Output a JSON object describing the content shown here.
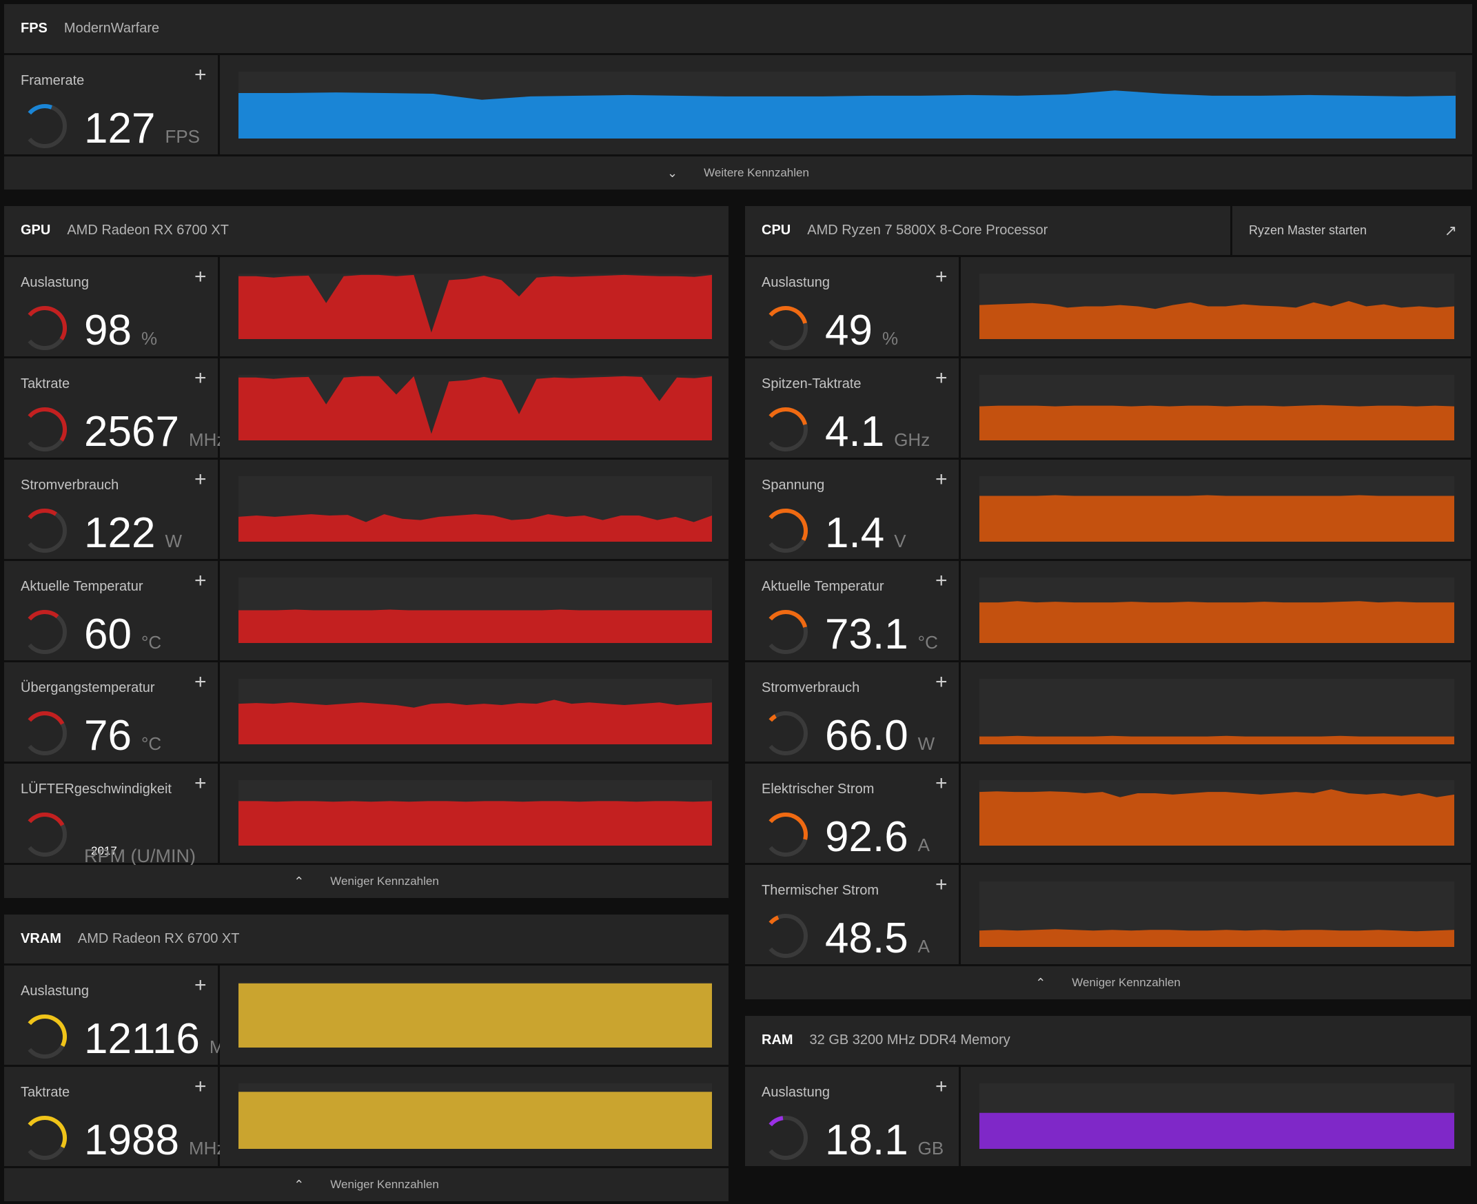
{
  "fps": {
    "tag": "FPS",
    "device": "ModernWarfare",
    "metric": {
      "label": "Framerate",
      "value": "127",
      "unit": "FPS",
      "level": 0.25,
      "color": "#1a85d6",
      "trace": [
        0.68,
        0.68,
        0.69,
        0.68,
        0.67,
        0.58,
        0.63,
        0.64,
        0.65,
        0.64,
        0.63,
        0.63,
        0.63,
        0.64,
        0.64,
        0.65,
        0.64,
        0.66,
        0.72,
        0.67,
        0.64,
        0.64,
        0.65,
        0.64,
        0.63,
        0.64
      ]
    },
    "footer": "Weitere Kennzahlen"
  },
  "gpu": {
    "tag": "GPU",
    "device": "AMD Radeon RX 6700 XT",
    "color": "#c32020",
    "metrics": [
      {
        "label": "Auslastung",
        "value": "98",
        "unit": "%",
        "level": 0.62,
        "trace": [
          0.96,
          0.96,
          0.94,
          0.96,
          0.97,
          0.55,
          0.96,
          0.98,
          0.98,
          0.96,
          0.98,
          0.1,
          0.9,
          0.92,
          0.97,
          0.9,
          0.65,
          0.94,
          0.96,
          0.95,
          0.96,
          0.97,
          0.98,
          0.97,
          0.96,
          0.96,
          0.95,
          0.98
        ]
      },
      {
        "label": "Taktrate",
        "value": "2567",
        "unit": "MHz",
        "level": 0.62,
        "trace": [
          0.96,
          0.96,
          0.94,
          0.96,
          0.97,
          0.55,
          0.96,
          0.98,
          0.98,
          0.7,
          0.98,
          0.1,
          0.9,
          0.92,
          0.97,
          0.92,
          0.4,
          0.94,
          0.96,
          0.95,
          0.96,
          0.97,
          0.98,
          0.97,
          0.6,
          0.96,
          0.95,
          0.98
        ]
      },
      {
        "label": "Stromverbrauch",
        "value": "122",
        "unit": "W",
        "level": 0.3,
        "trace": [
          0.38,
          0.4,
          0.38,
          0.4,
          0.42,
          0.4,
          0.41,
          0.3,
          0.42,
          0.35,
          0.33,
          0.38,
          0.4,
          0.42,
          0.4,
          0.33,
          0.35,
          0.42,
          0.38,
          0.4,
          0.33,
          0.4,
          0.4,
          0.33,
          0.38,
          0.3,
          0.4
        ]
      },
      {
        "label": "Aktuelle Temperatur",
        "value": "60",
        "unit": "°C",
        "level": 0.32,
        "trace": [
          0.5,
          0.5,
          0.5,
          0.51,
          0.5,
          0.5,
          0.5,
          0.5,
          0.51,
          0.5,
          0.5,
          0.5,
          0.5,
          0.5,
          0.5,
          0.5,
          0.5,
          0.51,
          0.5,
          0.5,
          0.5,
          0.5,
          0.5,
          0.5,
          0.5,
          0.5
        ]
      },
      {
        "label": "Übergangstemperatur",
        "value": "76",
        "unit": "°C",
        "level": 0.4,
        "trace": [
          0.62,
          0.63,
          0.62,
          0.64,
          0.62,
          0.6,
          0.62,
          0.64,
          0.62,
          0.6,
          0.56,
          0.62,
          0.63,
          0.6,
          0.62,
          0.6,
          0.63,
          0.62,
          0.68,
          0.62,
          0.64,
          0.62,
          0.6,
          0.62,
          0.64,
          0.6,
          0.62,
          0.64
        ]
      },
      {
        "label": "LÜFTERgeschwindigkeit",
        "value": "2017",
        "unit": "RPM (U/MIN)",
        "level": 0.4,
        "trace": [
          0.68,
          0.68,
          0.67,
          0.68,
          0.68,
          0.67,
          0.68,
          0.67,
          0.68,
          0.67,
          0.68,
          0.68,
          0.67,
          0.68,
          0.68,
          0.67,
          0.68,
          0.68,
          0.67,
          0.68,
          0.68,
          0.67,
          0.68,
          0.68,
          0.67,
          0.68
        ]
      }
    ],
    "footer": "Weniger Kennzahlen"
  },
  "vram": {
    "tag": "VRAM",
    "device": "AMD Radeon RX 6700 XT",
    "color": "#caa42f",
    "gauge_color": "#f0c419",
    "metrics": [
      {
        "label": "Auslastung",
        "value": "12116",
        "unit": "MB",
        "level": 0.6,
        "trace": [
          0.98,
          0.98,
          0.98,
          0.98,
          0.98,
          0.98,
          0.98,
          0.98,
          0.98,
          0.98,
          0.98,
          0.98,
          0.98,
          0.98,
          0.98,
          0.98,
          0.98,
          0.98,
          0.98,
          0.98,
          0.98,
          0.98
        ]
      },
      {
        "label": "Taktrate",
        "value": "1988",
        "unit": "MHz",
        "level": 0.6,
        "trace": [
          0.87,
          0.87,
          0.87,
          0.87,
          0.87,
          0.87,
          0.87,
          0.87,
          0.87,
          0.87,
          0.87,
          0.87,
          0.87,
          0.87,
          0.87,
          0.87,
          0.87,
          0.87,
          0.87,
          0.87,
          0.87,
          0.87
        ]
      }
    ],
    "footer": "Weniger Kennzahlen"
  },
  "cpu": {
    "tag": "CPU",
    "device": "AMD Ryzen 7 5800X 8-Core Processor",
    "ext_label": "Ryzen Master starten",
    "color": "#c4510f",
    "gauge_color": "#f06a12",
    "metrics": [
      {
        "label": "Auslastung",
        "value": "49",
        "unit": "%",
        "level": 0.45,
        "trace": [
          0.52,
          0.53,
          0.54,
          0.55,
          0.53,
          0.48,
          0.5,
          0.5,
          0.52,
          0.5,
          0.46,
          0.52,
          0.56,
          0.5,
          0.5,
          0.53,
          0.51,
          0.5,
          0.48,
          0.56,
          0.5,
          0.58,
          0.5,
          0.53,
          0.48,
          0.5,
          0.48,
          0.5
        ]
      },
      {
        "label": "Spitzen-Taktrate",
        "value": "4.1",
        "unit": "GHz",
        "level": 0.45,
        "trace": [
          0.52,
          0.53,
          0.53,
          0.53,
          0.52,
          0.53,
          0.53,
          0.53,
          0.52,
          0.53,
          0.52,
          0.53,
          0.53,
          0.52,
          0.53,
          0.53,
          0.52,
          0.53,
          0.54,
          0.53,
          0.52,
          0.53,
          0.53,
          0.52,
          0.53,
          0.52
        ]
      },
      {
        "label": "Spannung",
        "value": "1.4",
        "unit": "V",
        "level": 0.6,
        "trace": [
          0.7,
          0.7,
          0.7,
          0.7,
          0.71,
          0.7,
          0.7,
          0.7,
          0.7,
          0.7,
          0.7,
          0.7,
          0.71,
          0.7,
          0.7,
          0.7,
          0.7,
          0.7,
          0.7,
          0.7,
          0.71,
          0.7,
          0.7,
          0.7,
          0.7,
          0.7
        ]
      },
      {
        "label": "Aktuelle Temperatur",
        "value": "73.1",
        "unit": "°C",
        "level": 0.45,
        "trace": [
          0.62,
          0.62,
          0.64,
          0.62,
          0.63,
          0.62,
          0.62,
          0.62,
          0.63,
          0.62,
          0.62,
          0.63,
          0.62,
          0.62,
          0.62,
          0.63,
          0.62,
          0.62,
          0.62,
          0.63,
          0.64,
          0.62,
          0.63,
          0.62,
          0.62,
          0.62
        ]
      },
      {
        "label": "Stromverbrauch",
        "value": "66.0",
        "unit": "W",
        "level": 0.07,
        "trace": [
          0.12,
          0.12,
          0.13,
          0.12,
          0.12,
          0.12,
          0.12,
          0.13,
          0.12,
          0.12,
          0.12,
          0.12,
          0.12,
          0.13,
          0.12,
          0.12,
          0.12,
          0.12,
          0.12,
          0.13,
          0.12,
          0.12,
          0.12,
          0.12,
          0.12,
          0.12
        ]
      },
      {
        "label": "Elektrischer Strom",
        "value": "92.6",
        "unit": "A",
        "level": 0.55,
        "trace": [
          0.82,
          0.83,
          0.82,
          0.82,
          0.83,
          0.82,
          0.8,
          0.82,
          0.74,
          0.8,
          0.8,
          0.78,
          0.8,
          0.82,
          0.82,
          0.8,
          0.78,
          0.8,
          0.82,
          0.8,
          0.86,
          0.8,
          0.78,
          0.8,
          0.76,
          0.8,
          0.74,
          0.78
        ]
      },
      {
        "label": "Thermischer Strom",
        "value": "48.5",
        "unit": "A",
        "level": 0.1,
        "trace": [
          0.25,
          0.26,
          0.25,
          0.26,
          0.27,
          0.26,
          0.25,
          0.26,
          0.25,
          0.26,
          0.26,
          0.25,
          0.25,
          0.26,
          0.25,
          0.26,
          0.25,
          0.26,
          0.26,
          0.25,
          0.25,
          0.26,
          0.25,
          0.24,
          0.25,
          0.26
        ]
      }
    ],
    "footer": "Weniger Kennzahlen"
  },
  "ram": {
    "tag": "RAM",
    "device": "32 GB 3200 MHz DDR4 Memory",
    "color": "#7f28c8",
    "gauge_color": "#9b30e6",
    "metrics": [
      {
        "label": "Auslastung",
        "value": "18.1",
        "unit": "GB",
        "level": 0.15,
        "trace": [
          0.55,
          0.55,
          0.55,
          0.55,
          0.55,
          0.55,
          0.55,
          0.55,
          0.55,
          0.55,
          0.55,
          0.55,
          0.55,
          0.55,
          0.55,
          0.55,
          0.55,
          0.55,
          0.55,
          0.55,
          0.55,
          0.55
        ]
      }
    ]
  },
  "icons": {
    "plus": "plus-icon",
    "chevron_down": "chevron-down-icon",
    "chevron_up": "chevron-up-icon",
    "external": "external-link-icon"
  }
}
